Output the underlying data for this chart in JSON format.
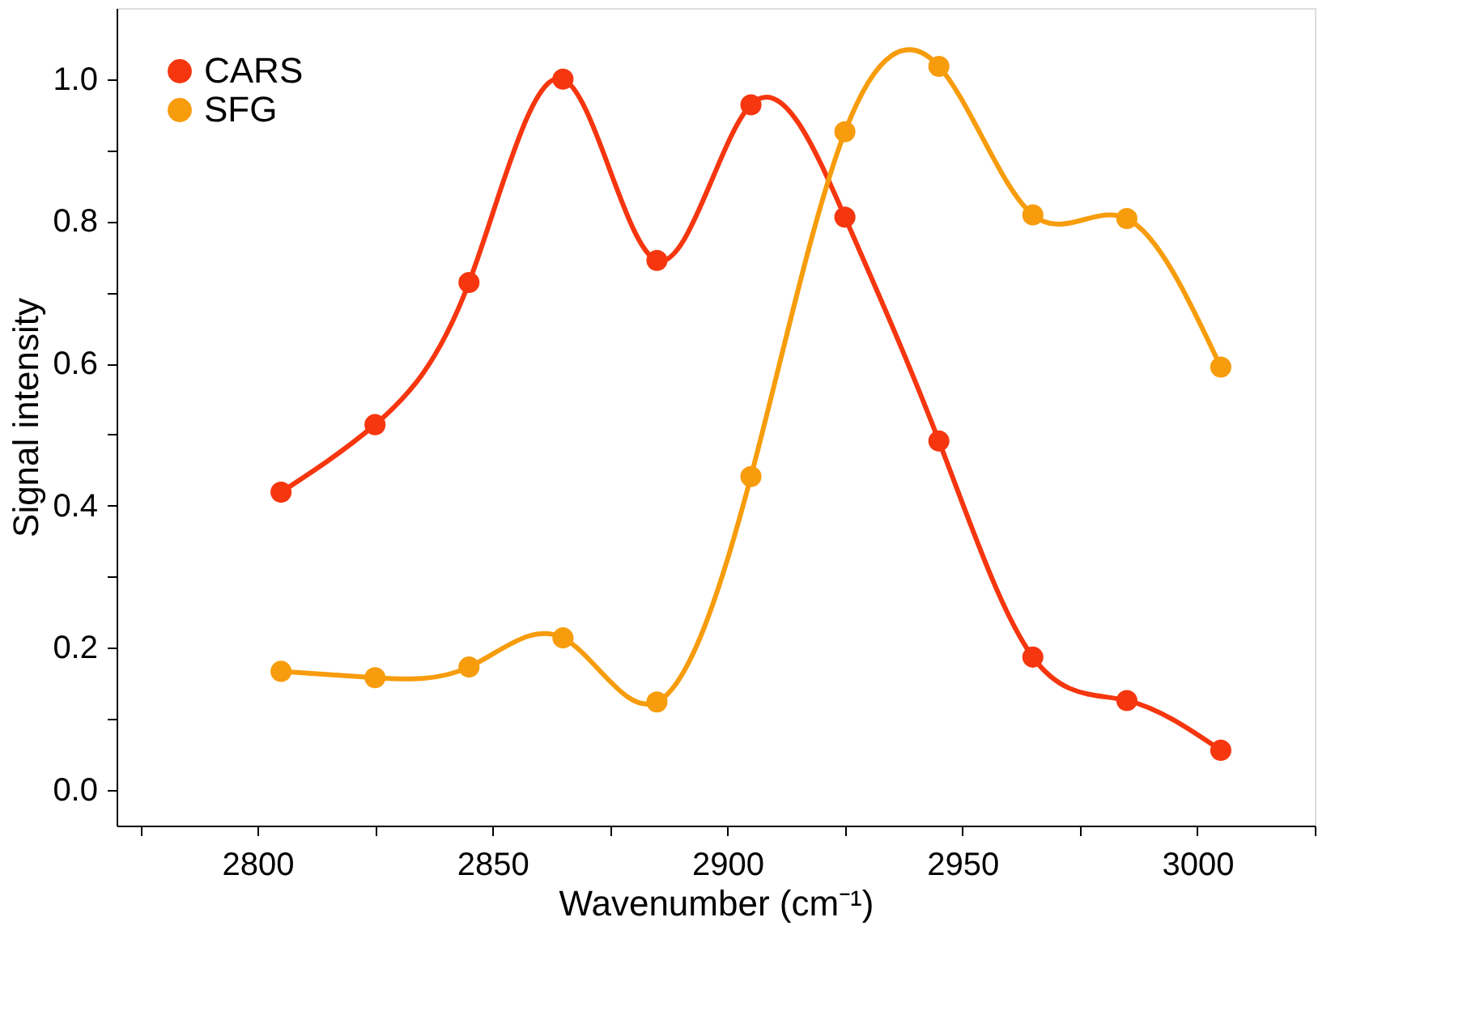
{
  "chart_data": {
    "type": "line",
    "xlabel": "Wavenumber (cm⁻¹)",
    "ylabel": "Signal intensity",
    "x": [
      2805,
      2825,
      2845,
      2865,
      2885,
      2905,
      2925,
      2945,
      2965,
      2985,
      3005
    ],
    "series": [
      {
        "name": "CARS",
        "color": "#f5360f",
        "values": [
          0.419,
          0.514,
          0.714,
          1.0,
          0.745,
          0.964,
          0.806,
          0.491,
          0.187,
          0.126,
          0.056
        ]
      },
      {
        "name": "SFG",
        "color": "#f79c0c",
        "values": [
          0.167,
          0.158,
          0.173,
          0.214,
          0.124,
          0.441,
          0.926,
          1.018,
          0.809,
          0.804,
          0.595
        ]
      }
    ],
    "xlim": [
      2770,
      3025
    ],
    "ylim": [
      -0.05,
      1.1
    ],
    "xticks": [
      {
        "value": 2775,
        "label": null
      },
      2800,
      {
        "value": 2825,
        "label": null
      },
      2850,
      {
        "value": 2875,
        "label": null
      },
      2900,
      {
        "value": 2925,
        "label": null
      },
      2950,
      {
        "value": 2975,
        "label": null
      },
      3000,
      {
        "value": 3025,
        "label": null
      }
    ],
    "yticks": [
      {
        "value": 0,
        "label": "0.0"
      },
      {
        "value": 0.1,
        "label": null
      },
      0.2,
      {
        "value": 0.3,
        "label": null
      },
      0.4,
      {
        "value": 0.5,
        "label": null
      },
      0.6,
      {
        "value": 0.7,
        "label": null
      },
      0.8,
      {
        "value": 0.9,
        "label": null
      },
      {
        "value": 1.0,
        "label": "1.0"
      }
    ],
    "marker": "circle",
    "line_style": "solid",
    "grid": false,
    "legend": "top left"
  }
}
